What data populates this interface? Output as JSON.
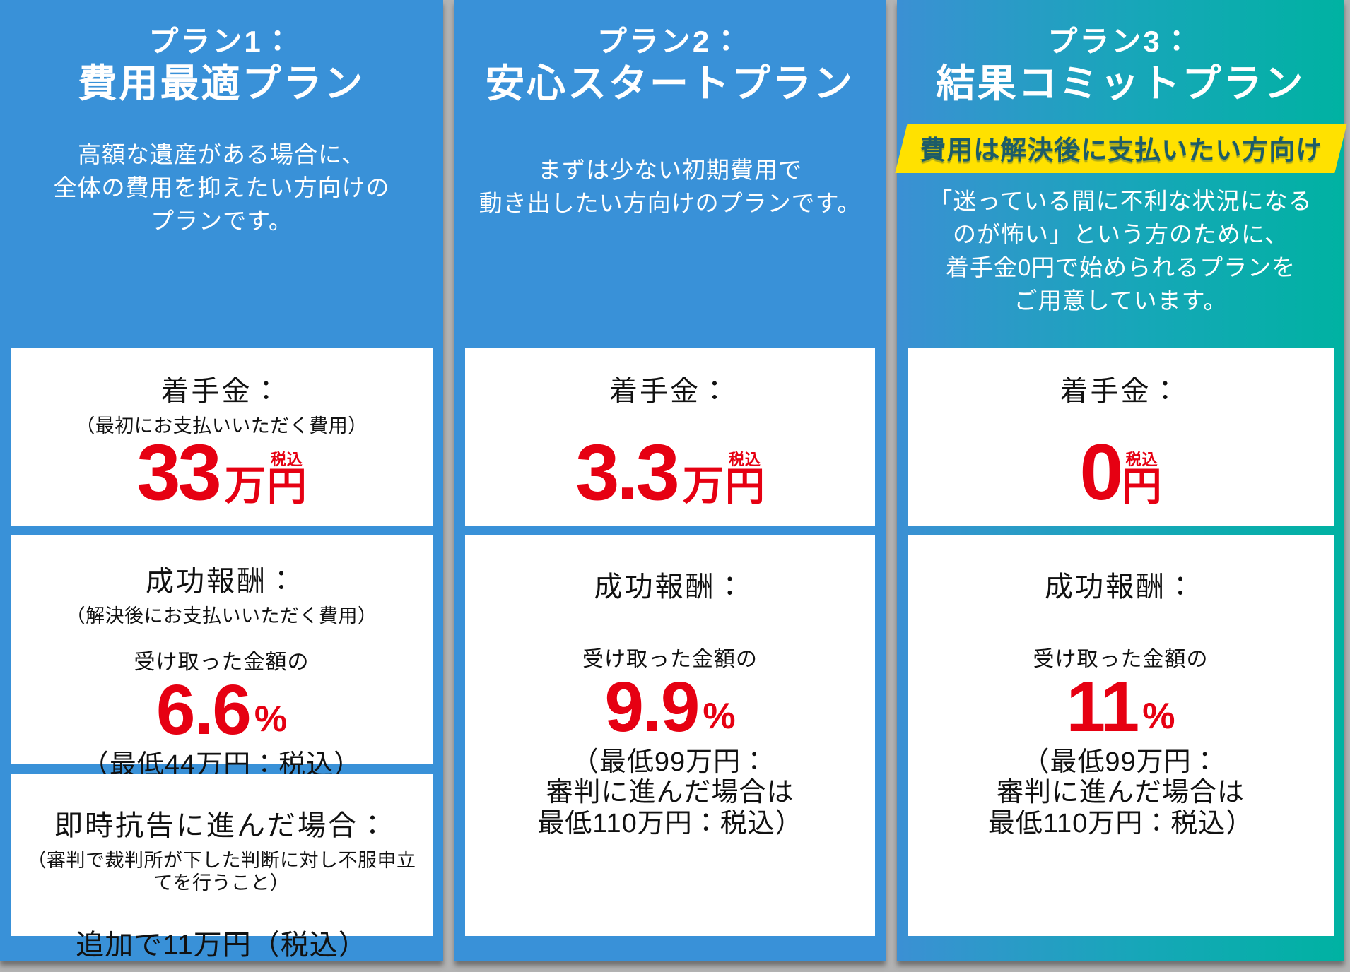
{
  "colors": {
    "blue": "#3991d8",
    "teal": "#00b2a2",
    "yellow": "#ffe100",
    "red": "#e60012",
    "badge_text": "#1d5c68",
    "page_background": "#b3b3b3"
  },
  "plans": [
    {
      "label": "プラン1：",
      "title": "費用最適プラン",
      "desc": [
        "高額な遺産がある場合に、",
        "全体の費用を抑えたい方向けの",
        "プランです。"
      ],
      "initial": {
        "title": "着手金：",
        "subtitle": "（最初にお支払いいただく費用）",
        "amount": "33",
        "unit": "万",
        "tax": "税込",
        "yen": "円"
      },
      "success": {
        "title": "成功報酬：",
        "subtitle": "（解決後にお支払いいただく費用）",
        "lead": "受け取った金額の",
        "percent": "6.6",
        "percent_sign": "%",
        "notes": [
          "（最低44万円：税込）"
        ]
      },
      "appeal": {
        "title": "即時抗告に進んだ場合：",
        "subtitle": "（審判で裁判所が下した判断に対し不服申立てを行うこと）",
        "note": "追加で11万円（税込）"
      }
    },
    {
      "label": "プラン2：",
      "title": "安心スタートプラン",
      "desc": [
        "まずは少ない初期費用で",
        "動き出したい方向けのプランです。"
      ],
      "initial": {
        "title": "着手金：",
        "amount": "3.3",
        "unit": "万",
        "tax": "税込",
        "yen": "円"
      },
      "success": {
        "title": "成功報酬：",
        "lead": "受け取った金額の",
        "percent": "9.9",
        "percent_sign": "%",
        "notes": [
          "（最低99万円：",
          "審判に進んだ場合は",
          "最低110万円：税込）"
        ]
      }
    },
    {
      "label": "プラン3：",
      "title": "結果コミットプラン",
      "badge": "費用は解決後に支払いたい方向け",
      "desc": [
        "「迷っている間に不利な状況になる",
        "のが怖い」という方のために、",
        "着手金0円で始められるプランを",
        "ご用意しています。"
      ],
      "initial": {
        "title": "着手金：",
        "amount": "0",
        "tax": "税込",
        "yen": "円"
      },
      "success": {
        "title": "成功報酬：",
        "lead": "受け取った金額の",
        "percent": "11",
        "percent_sign": "%",
        "notes": [
          "（最低99万円：",
          "審判に進んだ場合は",
          "最低110万円：税込）"
        ]
      }
    }
  ]
}
